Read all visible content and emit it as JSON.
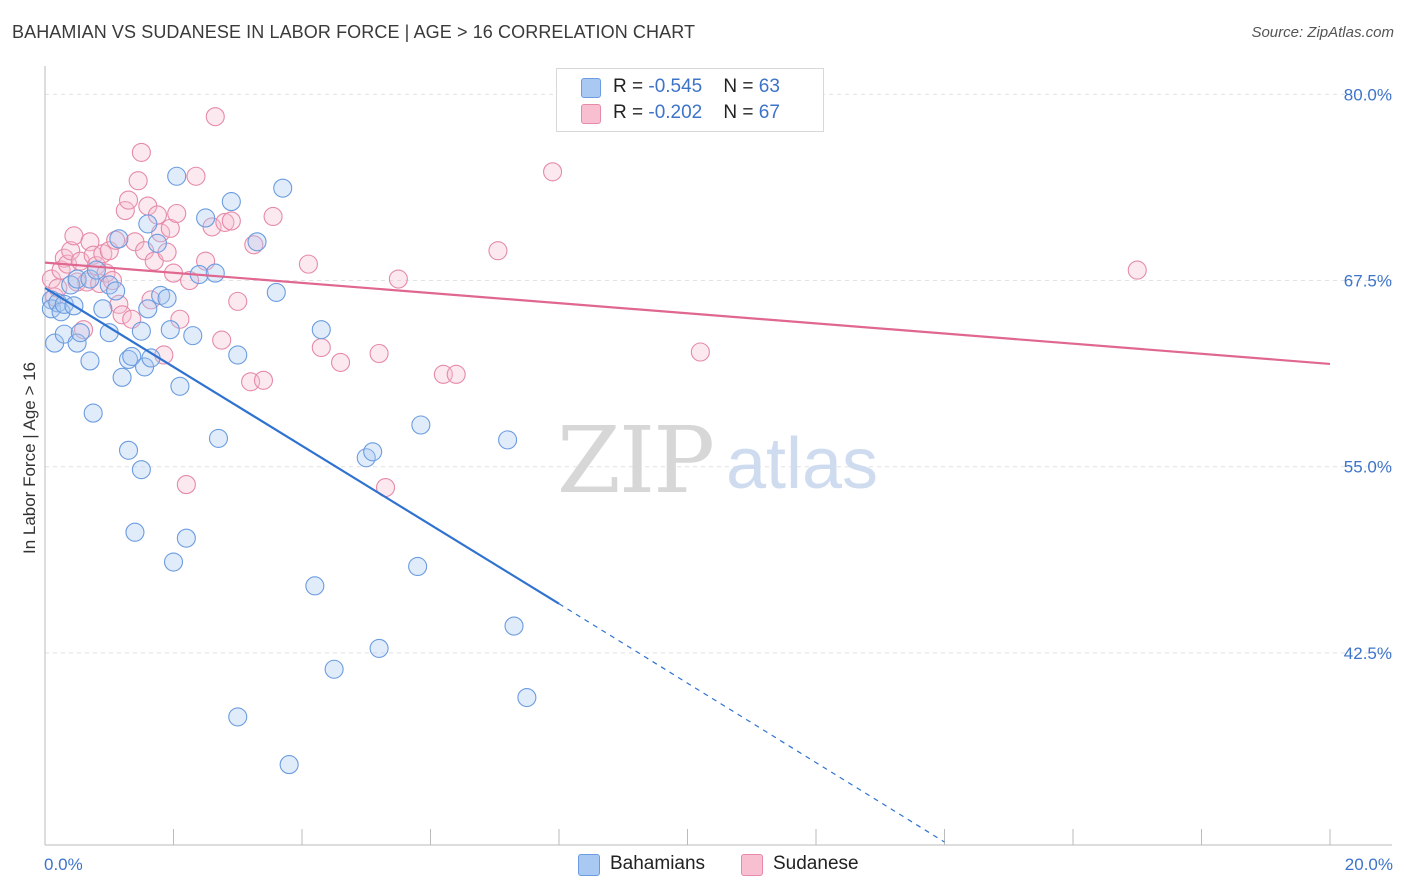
{
  "title": "BAHAMIAN VS SUDANESE IN LABOR FORCE | AGE > 16 CORRELATION CHART",
  "source": "Source: ZipAtlas.com",
  "watermark": {
    "zip": "ZIP",
    "atlas": "atlas"
  },
  "legend_top": [
    {
      "r_label": "R = ",
      "r_value": "-0.545",
      "n_label": "N = ",
      "n_value": "63",
      "color": "#a9c8f2",
      "border": "#6b9ce0"
    },
    {
      "r_label": "R = ",
      "r_value": "-0.202",
      "n_label": "N = ",
      "n_value": "67",
      "color": "#f7bfd0",
      "border": "#e58aa8"
    }
  ],
  "legend_bottom": [
    {
      "label": "Bahamians",
      "color": "#a9c8f2",
      "border": "#6b9ce0"
    },
    {
      "label": "Sudanese",
      "color": "#f7bfd0",
      "border": "#e58aa8"
    }
  ],
  "chart_data": {
    "type": "scatter",
    "title": "BAHAMIAN VS SUDANESE IN LABOR FORCE | AGE > 16 CORRELATION CHART",
    "xlabel": "",
    "ylabel": "In Labor Force | Age > 16",
    "xlim": [
      0,
      20
    ],
    "ylim": [
      29.6,
      81.5
    ],
    "x_tick_labels": [
      "0.0%",
      "20.0%"
    ],
    "y_ticks": [
      42.5,
      55.0,
      67.5,
      80.0
    ],
    "y_tick_labels": [
      "42.5%",
      "55.0%",
      "67.5%",
      "80.0%"
    ],
    "grid": true,
    "legend_position": "top-center",
    "series": [
      {
        "name": "Bahamians",
        "color": "#6b9ce0",
        "fill": "rgba(169,200,242,0.35)",
        "trend": {
          "x0": 0.0,
          "y0": 67.0,
          "x1": 8.0,
          "y1": 45.8,
          "dash_to_x": 14.0,
          "dash_to_y": 29.8,
          "color": "#2f72d0"
        },
        "points": [
          [
            0.1,
            66.2
          ],
          [
            0.1,
            65.6
          ],
          [
            0.15,
            63.3
          ],
          [
            0.2,
            66.0
          ],
          [
            0.25,
            65.4
          ],
          [
            0.3,
            63.9
          ],
          [
            0.3,
            65.9
          ],
          [
            0.4,
            67.2
          ],
          [
            0.45,
            65.8
          ],
          [
            0.5,
            63.3
          ],
          [
            0.5,
            67.6
          ],
          [
            0.7,
            67.6
          ],
          [
            0.7,
            62.1
          ],
          [
            0.75,
            58.6
          ],
          [
            0.8,
            68.2
          ],
          [
            0.9,
            65.6
          ],
          [
            1.0,
            67.2
          ],
          [
            1.0,
            64.0
          ],
          [
            1.1,
            66.8
          ],
          [
            1.15,
            70.3
          ],
          [
            1.2,
            61.0
          ],
          [
            1.3,
            62.2
          ],
          [
            1.3,
            56.1
          ],
          [
            1.35,
            62.4
          ],
          [
            1.4,
            50.6
          ],
          [
            1.5,
            54.8
          ],
          [
            1.5,
            64.1
          ],
          [
            1.55,
            61.7
          ],
          [
            1.6,
            71.3
          ],
          [
            1.65,
            62.3
          ],
          [
            1.75,
            70.0
          ],
          [
            1.8,
            66.5
          ],
          [
            1.9,
            66.3
          ],
          [
            1.95,
            64.2
          ],
          [
            2.0,
            48.6
          ],
          [
            2.05,
            74.5
          ],
          [
            2.1,
            60.4
          ],
          [
            2.2,
            50.2
          ],
          [
            2.3,
            63.8
          ],
          [
            2.4,
            67.9
          ],
          [
            2.5,
            71.7
          ],
          [
            2.65,
            68.0
          ],
          [
            2.7,
            56.9
          ],
          [
            2.9,
            72.8
          ],
          [
            3.0,
            38.2
          ],
          [
            3.0,
            62.5
          ],
          [
            3.3,
            70.1
          ],
          [
            3.6,
            66.7
          ],
          [
            3.7,
            73.7
          ],
          [
            3.8,
            35.0
          ],
          [
            4.2,
            47.0
          ],
          [
            4.3,
            64.2
          ],
          [
            4.5,
            41.4
          ],
          [
            5.0,
            55.6
          ],
          [
            5.1,
            56.0
          ],
          [
            5.2,
            42.8
          ],
          [
            5.8,
            48.3
          ],
          [
            5.85,
            57.8
          ],
          [
            7.2,
            56.8
          ],
          [
            7.3,
            44.3
          ],
          [
            7.5,
            39.5
          ],
          [
            1.6,
            65.6
          ],
          [
            0.55,
            64.0
          ]
        ]
      },
      {
        "name": "Sudanese",
        "color": "#e58aa8",
        "fill": "rgba(247,191,208,0.35)",
        "trend": {
          "x0": 0.0,
          "y0": 68.7,
          "x1": 20.0,
          "y1": 61.9,
          "color": "#e0678f"
        },
        "points": [
          [
            0.1,
            67.6
          ],
          [
            0.15,
            66.4
          ],
          [
            0.2,
            67.0
          ],
          [
            0.25,
            68.2
          ],
          [
            0.3,
            69.0
          ],
          [
            0.35,
            68.6
          ],
          [
            0.4,
            69.5
          ],
          [
            0.45,
            70.5
          ],
          [
            0.5,
            67.4
          ],
          [
            0.55,
            68.8
          ],
          [
            0.6,
            64.2
          ],
          [
            0.65,
            67.4
          ],
          [
            0.7,
            70.1
          ],
          [
            0.75,
            69.2
          ],
          [
            0.8,
            68.5
          ],
          [
            0.85,
            67.3
          ],
          [
            0.9,
            69.3
          ],
          [
            0.95,
            68.0
          ],
          [
            1.0,
            69.5
          ],
          [
            1.05,
            67.5
          ],
          [
            1.1,
            70.2
          ],
          [
            1.15,
            65.9
          ],
          [
            1.2,
            65.2
          ],
          [
            1.25,
            72.2
          ],
          [
            1.3,
            72.9
          ],
          [
            1.35,
            64.9
          ],
          [
            1.4,
            70.1
          ],
          [
            1.45,
            74.2
          ],
          [
            1.5,
            76.1
          ],
          [
            1.55,
            69.5
          ],
          [
            1.6,
            72.5
          ],
          [
            1.65,
            66.2
          ],
          [
            1.7,
            68.8
          ],
          [
            1.75,
            71.9
          ],
          [
            1.8,
            70.7
          ],
          [
            1.85,
            62.5
          ],
          [
            1.9,
            69.4
          ],
          [
            1.95,
            71.0
          ],
          [
            2.0,
            68.0
          ],
          [
            2.05,
            72.0
          ],
          [
            2.1,
            64.9
          ],
          [
            2.2,
            53.8
          ],
          [
            2.35,
            74.5
          ],
          [
            2.5,
            68.8
          ],
          [
            2.6,
            71.1
          ],
          [
            2.65,
            78.5
          ],
          [
            2.75,
            63.5
          ],
          [
            2.8,
            71.4
          ],
          [
            2.9,
            71.5
          ],
          [
            3.0,
            66.1
          ],
          [
            3.2,
            60.7
          ],
          [
            3.25,
            69.9
          ],
          [
            3.4,
            60.8
          ],
          [
            3.55,
            71.8
          ],
          [
            4.1,
            68.6
          ],
          [
            4.3,
            63.0
          ],
          [
            4.6,
            62.0
          ],
          [
            5.2,
            62.6
          ],
          [
            5.3,
            53.6
          ],
          [
            5.5,
            67.6
          ],
          [
            6.2,
            61.2
          ],
          [
            6.4,
            61.2
          ],
          [
            7.05,
            69.5
          ],
          [
            7.9,
            74.8
          ],
          [
            10.2,
            62.7
          ],
          [
            17.0,
            68.2
          ],
          [
            2.25,
            67.5
          ]
        ]
      }
    ]
  }
}
